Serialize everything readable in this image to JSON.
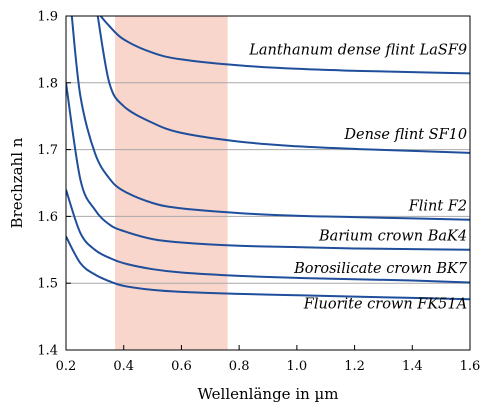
{
  "chart_data": {
    "type": "line",
    "xlabel": "Wellenlänge in µm",
    "ylabel": "Brechzahl n",
    "xlim": [
      0.2,
      1.6
    ],
    "ylim": [
      1.4,
      1.9
    ],
    "x_ticks": [
      "0.2",
      "0.4",
      "0.6",
      "0.8",
      "1.0",
      "1.2",
      "1.4",
      "1.6"
    ],
    "y_ticks": [
      "1.4",
      "1.5",
      "1.6",
      "1.7",
      "1.8",
      "1.9"
    ],
    "grid": "horizontal",
    "highlight_band": {
      "x_range": [
        0.37,
        0.76
      ],
      "color": "#f9d6cc"
    },
    "line_color": "#1f4e9b",
    "series": [
      {
        "name": "Lanthanum dense flint LaSF9",
        "x": [
          0.32,
          0.35,
          0.4,
          0.5,
          0.6,
          0.8,
          1.0,
          1.2,
          1.4,
          1.6
        ],
        "y": [
          1.9,
          1.885,
          1.865,
          1.845,
          1.835,
          1.826,
          1.821,
          1.818,
          1.816,
          1.814
        ]
      },
      {
        "name": "Dense flint SF10",
        "x": [
          0.31,
          0.35,
          0.4,
          0.5,
          0.6,
          0.8,
          1.0,
          1.2,
          1.4,
          1.6
        ],
        "y": [
          1.9,
          1.8,
          1.765,
          1.74,
          1.725,
          1.712,
          1.705,
          1.701,
          1.698,
          1.695
        ]
      },
      {
        "name": "Flint F2",
        "x": [
          0.22,
          0.25,
          0.3,
          0.35,
          0.4,
          0.5,
          0.6,
          0.8,
          1.0,
          1.2,
          1.4,
          1.6
        ],
        "y": [
          1.9,
          1.78,
          1.695,
          1.657,
          1.638,
          1.62,
          1.612,
          1.605,
          1.601,
          1.599,
          1.597,
          1.595
        ]
      },
      {
        "name": "Barium crown BaK4",
        "x": [
          0.2,
          0.25,
          0.3,
          0.35,
          0.4,
          0.5,
          0.6,
          0.8,
          1.0,
          1.2,
          1.4,
          1.6
        ],
        "y": [
          1.8,
          1.655,
          1.61,
          1.588,
          1.578,
          1.566,
          1.561,
          1.556,
          1.554,
          1.552,
          1.551,
          1.55
        ]
      },
      {
        "name": "Borosilicate crown BK7",
        "x": [
          0.2,
          0.25,
          0.3,
          0.35,
          0.4,
          0.5,
          0.6,
          0.8,
          1.0,
          1.2,
          1.4,
          1.6
        ],
        "y": [
          1.64,
          1.575,
          1.55,
          1.538,
          1.53,
          1.521,
          1.516,
          1.511,
          1.508,
          1.506,
          1.504,
          1.501
        ]
      },
      {
        "name": "Fluorite crown FK51A",
        "x": [
          0.2,
          0.25,
          0.3,
          0.35,
          0.4,
          0.5,
          0.6,
          0.8,
          1.0,
          1.2,
          1.4,
          1.6
        ],
        "y": [
          1.57,
          1.53,
          1.513,
          1.503,
          1.496,
          1.49,
          1.487,
          1.484,
          1.482,
          1.48,
          1.478,
          1.476
        ]
      }
    ]
  }
}
